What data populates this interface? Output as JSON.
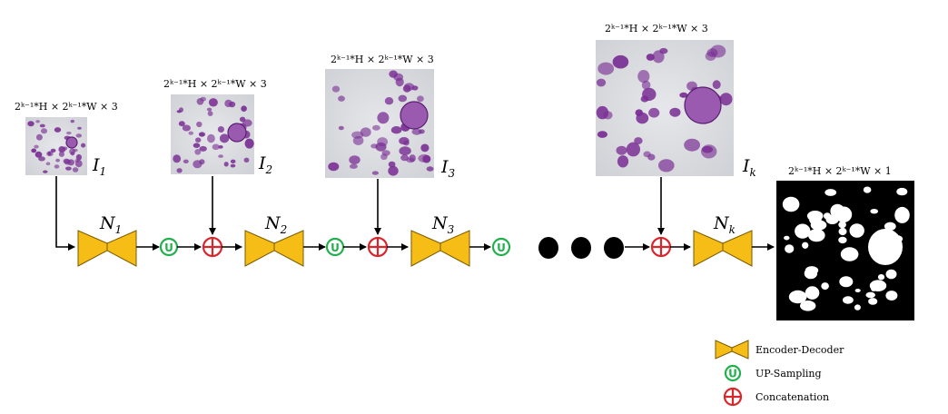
{
  "inputs": [
    {
      "dim_label": "2ᵏ⁻¹*H × 2ᵏ⁻¹*W × 3",
      "name": "I",
      "sub": "1"
    },
    {
      "dim_label": "2ᵏ⁻¹*H × 2ᵏ⁻¹*W × 3",
      "name": "I",
      "sub": "2"
    },
    {
      "dim_label": "2ᵏ⁻¹*H × 2ᵏ⁻¹*W × 3",
      "name": "I",
      "sub": "3"
    },
    {
      "dim_label": "2ᵏ⁻¹*H × 2ᵏ⁻¹*W × 3",
      "name": "I",
      "sub": "k"
    }
  ],
  "networks": [
    {
      "name": "N",
      "sub": "1"
    },
    {
      "name": "N",
      "sub": "2"
    },
    {
      "name": "N",
      "sub": "3"
    },
    {
      "name": "N",
      "sub": "k"
    }
  ],
  "upsampling_symbol": "U",
  "output": {
    "dim_label": "2ᵏ⁻¹*H × 2ᵏ⁻¹*W × 1"
  },
  "legend": {
    "encoder_decoder": "Encoder-Decoder",
    "up_sampling": "UP-Sampling",
    "concatenation": "Concatenation"
  },
  "colors": {
    "bowtie_fill": "#f6bd16",
    "bowtie_stroke": "#7a5a00",
    "upsample": "#21b04b",
    "concat": "#d9262c",
    "cell_bg": "#d9dbe0",
    "cell": "#7a2f94"
  }
}
